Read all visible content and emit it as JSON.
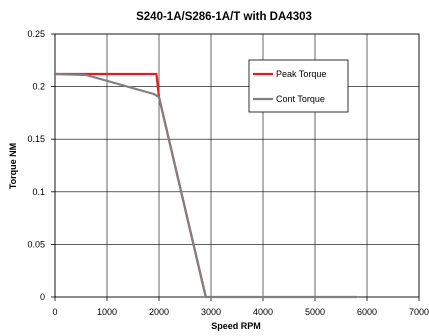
{
  "chart_data": {
    "type": "line",
    "title": "S240-1A/S286-1A/T with DA4303",
    "xlabel": "Speed RPM",
    "ylabel": "Torque NM",
    "xlim": [
      0,
      7000
    ],
    "ylim": [
      0,
      0.25
    ],
    "x_ticks": [
      "0",
      "1000",
      "2000",
      "3000",
      "4000",
      "5000",
      "6000",
      "7000"
    ],
    "y_ticks": [
      "0",
      "0.05",
      "0.1",
      "0.15",
      "0.2",
      "0.25"
    ],
    "x_tick_values": [
      0,
      1000,
      2000,
      3000,
      4000,
      5000,
      6000,
      7000
    ],
    "y_tick_values": [
      0,
      0.05,
      0.1,
      0.15,
      0.2,
      0.25
    ],
    "grid": true,
    "legend_position": "top-right",
    "series": [
      {
        "name": "Peak Torque",
        "color": "#e02020",
        "x": [
          0,
          1900,
          1950,
          2000,
          2900
        ],
        "y": [
          0.212,
          0.212,
          0.212,
          0.19,
          0
        ]
      },
      {
        "name": "Cont Torque",
        "color": "#808080",
        "x": [
          0,
          600,
          1900,
          2000,
          2900,
          5800
        ],
        "y": [
          0.212,
          0.211,
          0.193,
          0.19,
          0,
          0
        ]
      }
    ]
  }
}
